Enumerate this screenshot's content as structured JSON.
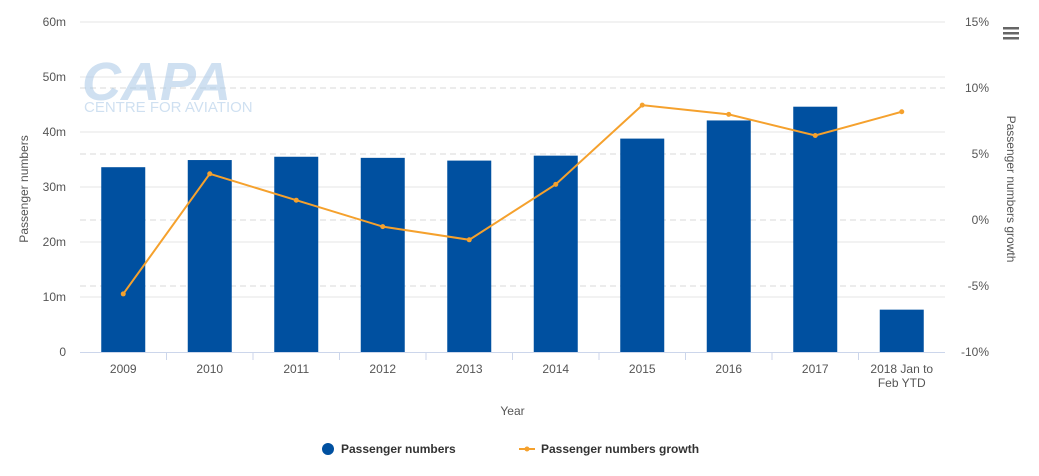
{
  "chart_data": {
    "type": "bar",
    "categories": [
      "2009",
      "2010",
      "2011",
      "2012",
      "2013",
      "2014",
      "2015",
      "2016",
      "2017",
      "2018 Jan to Feb YTD"
    ],
    "series": [
      {
        "name": "Passenger numbers",
        "type": "bar",
        "axis": "left",
        "color": "#0050a0",
        "values": [
          33.6,
          34.9,
          35.5,
          35.3,
          34.8,
          35.7,
          38.8,
          42.1,
          44.6,
          7.7
        ]
      },
      {
        "name": "Passenger numbers growth",
        "type": "line",
        "axis": "right",
        "color": "#f5a12d",
        "values": [
          -5.6,
          3.5,
          1.5,
          -0.5,
          -1.5,
          2.7,
          8.7,
          8.0,
          6.4,
          8.2
        ]
      }
    ],
    "xlabel": "Year",
    "ylabel": "Passenger numbers",
    "y2label": "Passenger numbers growth",
    "ylim": [
      0,
      60
    ],
    "y2lim": [
      -10,
      15
    ],
    "yticks": [
      "0",
      "10m",
      "20m",
      "30m",
      "40m",
      "50m",
      "60m"
    ],
    "y2ticks": [
      "-10%",
      "-5%",
      "0%",
      "5%",
      "10%",
      "15%"
    ],
    "grid": true,
    "legend": "bottom"
  },
  "watermark": {
    "logo": "CAPA",
    "tagline": "CENTRE FOR AVIATION"
  },
  "menu_icon": "hamburger-menu-icon"
}
